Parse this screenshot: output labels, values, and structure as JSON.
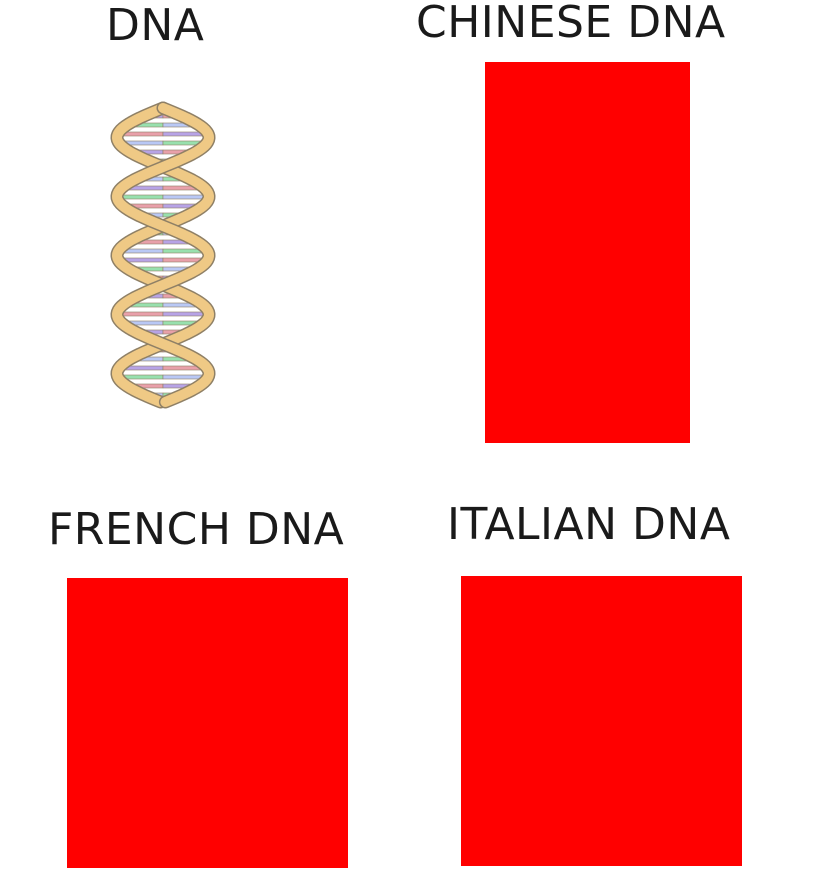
{
  "colors": {
    "background": "#ffffff",
    "text": "#1a1a1a",
    "red": "#ff0000",
    "helix_backbone": "#efc985",
    "helix_outline": "#8f8066",
    "base_colors": [
      "#b7a3e6",
      "#98e0ae",
      "#e8a0aa",
      "#b9c8f5"
    ]
  },
  "panels": [
    {
      "id": "dna",
      "title": "DNA",
      "image": "dna-double-helix"
    },
    {
      "id": "chinese",
      "title": "CHINESE DNA",
      "image": "red-rectangle"
    },
    {
      "id": "french",
      "title": "FRENCH DNA",
      "image": "red-rectangle"
    },
    {
      "id": "italian",
      "title": "ITALIAN DNA",
      "image": "red-rectangle"
    }
  ]
}
